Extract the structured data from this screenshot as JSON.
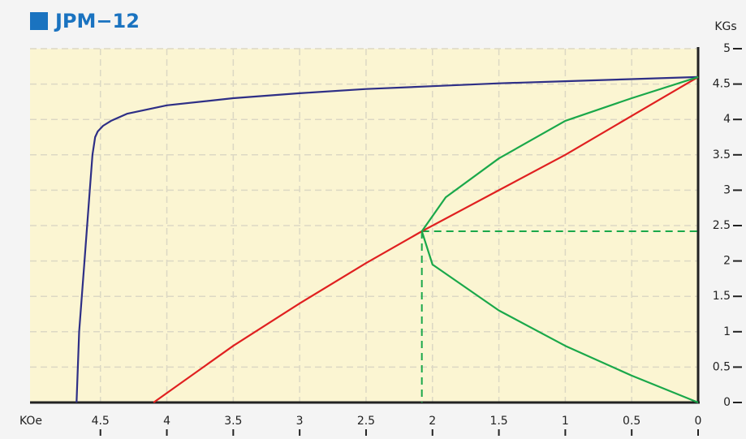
{
  "chart_data": {
    "type": "line",
    "title": "JPM−12",
    "xlabel": "KOe",
    "ylabel": "KGs",
    "xlim": [
      5.03,
      0
    ],
    "xticks": [
      4.5,
      4,
      3.5,
      3,
      2.5,
      2,
      1.5,
      1,
      0.5,
      0
    ],
    "ylim": [
      0,
      5
    ],
    "yticks": [
      0,
      0.5,
      1,
      1.5,
      2,
      2.5,
      3,
      3.5,
      4,
      4.5,
      5
    ],
    "grid": true,
    "series": [
      {
        "color": "#2e2f86",
        "x": [
          4.68,
          4.66,
          4.62,
          4.58,
          4.56,
          4.54,
          4.52,
          4.48,
          4.42,
          4.3,
          4.0,
          3.5,
          3.0,
          2.5,
          2.0,
          1.5,
          1.0,
          0.5,
          0
        ],
        "values": [
          0,
          1,
          2,
          3,
          3.5,
          3.75,
          3.83,
          3.91,
          3.98,
          4.08,
          4.2,
          4.3,
          4.37,
          4.43,
          4.47,
          4.51,
          4.54,
          4.57,
          4.6
        ]
      },
      {
        "color": "#e02020",
        "x": [
          4.1,
          3.5,
          3.0,
          2.5,
          2.08,
          1.5,
          1.0,
          0.5,
          0
        ],
        "values": [
          0,
          0.8,
          1.4,
          1.97,
          2.42,
          3.0,
          3.5,
          4.05,
          4.6
        ]
      },
      {
        "color": "#1aa84a",
        "x": [
          0,
          0.5,
          1.0,
          1.5,
          1.9,
          2.08,
          2.0,
          1.5,
          1.0,
          0.5,
          0
        ],
        "values": [
          4.6,
          4.3,
          3.98,
          3.45,
          2.9,
          2.42,
          1.95,
          1.3,
          0.8,
          0.38,
          0
        ]
      }
    ],
    "reference": {
      "color": "#1aa84a",
      "x": 2.08,
      "y": 2.42
    }
  }
}
